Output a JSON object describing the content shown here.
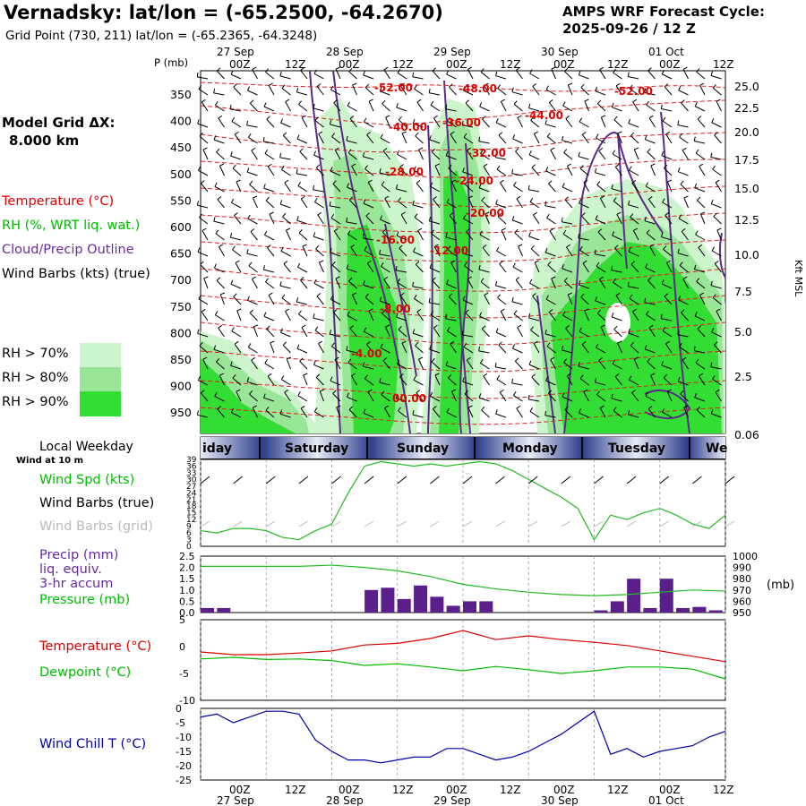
{
  "header": {
    "title": "Vernadsky:  lat/lon = (-65.2500, -64.2670)",
    "subtitle": "Grid Point (730, 211) lat/lon = (-65.2365, -64.3248)",
    "cycle_label": "AMPS WRF Forecast Cycle:",
    "cycle_value": "2025-09-26 / 12  Z"
  },
  "legend": {
    "model_grid": "Model Grid ΔX:",
    "model_grid_value": "8.000 km",
    "temperature": "Temperature (°C)",
    "rh": "RH (%, WRT liq. wat.)",
    "cloud": "Cloud/Precip Outline",
    "wind_barbs": "Wind Barbs (kts) (true)",
    "rh70": "RH > 70%",
    "rh80": "RH > 80%",
    "rh90": "RH > 90%",
    "rh70_color": "#ccf5cc",
    "rh80_color": "#99e699",
    "rh90_color": "#33dd33"
  },
  "axes": {
    "pressure_title": "P (mb)",
    "pressure_ticks": [
      "350",
      "400",
      "450",
      "500",
      "550",
      "600",
      "650",
      "700",
      "750",
      "800",
      "850",
      "900",
      "950"
    ],
    "height_ticks": [
      "25.0",
      "22.5",
      "20.0",
      "17.5",
      "15.0",
      "12.5",
      "10.0",
      "7.5",
      "5.0",
      "2.5",
      "0.06"
    ],
    "height_title": "Kft MSL",
    "time_ticks": [
      "00Z",
      "12Z",
      "00Z",
      "12Z",
      "00Z",
      "12Z",
      "00Z",
      "12Z",
      "00Z",
      "12Z"
    ],
    "date_labels": [
      "27 Sep",
      "28 Sep",
      "29 Sep",
      "30 Sep",
      "01 Oct"
    ]
  },
  "weekday": {
    "title": "Local Weekday",
    "days": [
      "iday",
      "Saturday",
      "Sunday",
      "Monday",
      "Tuesday",
      "We"
    ]
  },
  "panels": {
    "wind_title": "Wind at 10 m",
    "wind_spd": "Wind Spd (kts)",
    "wind_barbs_true": "Wind Barbs (true)",
    "wind_barbs_grid": "Wind Barbs (grid)",
    "wind_ticks": [
      "39",
      "36",
      "33",
      "30",
      "27",
      "24",
      "21",
      "18",
      "15",
      "12",
      "9",
      "6",
      "3",
      "0"
    ],
    "precip": "Precip (mm)",
    "precip2": "liq. equiv.",
    "precip3": "3-hr accum",
    "pressure": "Pressure (mb)",
    "precip_ticks": [
      "2.5",
      "2.0",
      "1.5",
      "1.0",
      "0.5",
      "0.0"
    ],
    "pressure_ticks": [
      "1000",
      "990",
      "980",
      "970",
      "960",
      "950"
    ],
    "pressure_unit": "(mb)",
    "temperature": "Temperature (°C)",
    "dewpoint": "Dewpoint (°C)",
    "temp_ticks": [
      "5",
      "0",
      "-5",
      "-10"
    ],
    "windchill": "Wind Chill T (°C)",
    "wc_ticks": [
      "0",
      "-5",
      "-10",
      "-15",
      "-20",
      "-25"
    ]
  },
  "colors": {
    "temperature": "#dd0000",
    "dewpoint": "#00bb00",
    "precip": "#5a1f8a",
    "windchill": "#0000aa",
    "cloud": "#5b2a8a",
    "weekday_dark": "#2c3e8c",
    "weekday_light": "#e8ecf6"
  },
  "chart_data": [
    {
      "type": "heatmap",
      "title": "Time-height cross section",
      "ylabel": "P (mb)",
      "ylim": [
        975,
        320
      ],
      "x_hours_from_start": [
        0,
        96
      ],
      "isotherm_labels": [
        "-52.00",
        "-48.00",
        "-52.00",
        "-40.00",
        "-36.00",
        "-44.00",
        "-32.00",
        "-28.00",
        "-24.00",
        "-20.00",
        "-16.00",
        "-12.00",
        "-8.00",
        "-4.00",
        "00.00"
      ]
    },
    {
      "type": "line",
      "title": "Wind Spd (kts)",
      "x": [
        0,
        3,
        6,
        9,
        12,
        15,
        18,
        21,
        24,
        27,
        30,
        33,
        36,
        39,
        42,
        45,
        48,
        51,
        54,
        57,
        60,
        63,
        66,
        69,
        72,
        75,
        78,
        81,
        84,
        87,
        90,
        93,
        96
      ],
      "values": [
        7,
        6,
        8,
        8,
        7,
        4,
        3,
        7,
        10,
        24,
        36,
        38,
        37,
        36,
        37,
        36,
        37,
        38,
        37,
        34,
        30,
        26,
        22,
        17,
        3,
        14,
        12,
        15,
        17,
        14,
        10,
        8,
        14
      ],
      "ylim": [
        0,
        39
      ]
    },
    {
      "type": "bar",
      "title": "Precip (mm) 3-hr accum",
      "x": [
        0,
        3,
        6,
        9,
        12,
        15,
        18,
        21,
        24,
        27,
        30,
        33,
        36,
        39,
        42,
        45,
        48,
        51,
        54,
        57,
        60,
        63,
        66,
        69,
        72,
        75,
        78,
        81,
        84,
        87,
        90,
        93,
        96
      ],
      "values": [
        0.2,
        0.2,
        0,
        0,
        0,
        0,
        0,
        0,
        0,
        0,
        1.0,
        1.1,
        0.6,
        1.2,
        0.7,
        0.3,
        0.5,
        0.5,
        0,
        0,
        0,
        0,
        0,
        0,
        0.1,
        0.5,
        1.5,
        0.2,
        1.5,
        0.2,
        0.25,
        0.1,
        0
      ],
      "ylim": [
        0,
        2.5
      ]
    },
    {
      "type": "line",
      "title": "Pressure (mb)",
      "x": [
        0,
        6,
        12,
        18,
        24,
        30,
        36,
        42,
        48,
        54,
        60,
        66,
        72,
        78,
        84,
        90,
        96
      ],
      "values": [
        991,
        991,
        991,
        991,
        992,
        990,
        987,
        982,
        975,
        971,
        968,
        966,
        965,
        966,
        968,
        970,
        969
      ],
      "ylim": [
        950,
        1000
      ]
    },
    {
      "type": "line",
      "title": "Temperature / Dewpoint (°C)",
      "x": [
        0,
        6,
        12,
        18,
        24,
        30,
        36,
        42,
        48,
        54,
        60,
        66,
        72,
        78,
        84,
        90,
        96
      ],
      "series": [
        {
          "name": "Temperature",
          "values": [
            -1,
            -1.5,
            -1.5,
            -1.2,
            -0.8,
            0.3,
            0.6,
            1.5,
            3.0,
            1.3,
            2.0,
            1.3,
            0.8,
            0.2,
            -0.8,
            -1.8,
            -2.8
          ]
        },
        {
          "name": "Dewpoint",
          "values": [
            -2.3,
            -2.0,
            -2.4,
            -2.3,
            -2.6,
            -3.5,
            -3.2,
            -3.8,
            -4.5,
            -3.7,
            -4.3,
            -5.0,
            -4.5,
            -3.8,
            -3.8,
            -4.2,
            -6.0
          ]
        }
      ],
      "ylim": [
        -10,
        5
      ]
    },
    {
      "type": "line",
      "title": "Wind Chill T (°C)",
      "x": [
        0,
        3,
        6,
        9,
        12,
        15,
        18,
        21,
        24,
        27,
        30,
        33,
        36,
        39,
        42,
        45,
        48,
        51,
        54,
        57,
        60,
        63,
        66,
        69,
        72,
        75,
        78,
        81,
        84,
        87,
        90,
        93,
        96
      ],
      "values": [
        -3,
        -2,
        -5,
        -3,
        -1,
        -1,
        -2,
        -11,
        -15,
        -18,
        -18,
        -19,
        -18,
        -17,
        -17,
        -14,
        -14,
        -16,
        -18,
        -17,
        -15,
        -12,
        -9,
        -5,
        -1,
        -16,
        -14,
        -17,
        -15,
        -14,
        -13,
        -10,
        -8
      ],
      "ylim": [
        -25,
        0
      ]
    }
  ]
}
